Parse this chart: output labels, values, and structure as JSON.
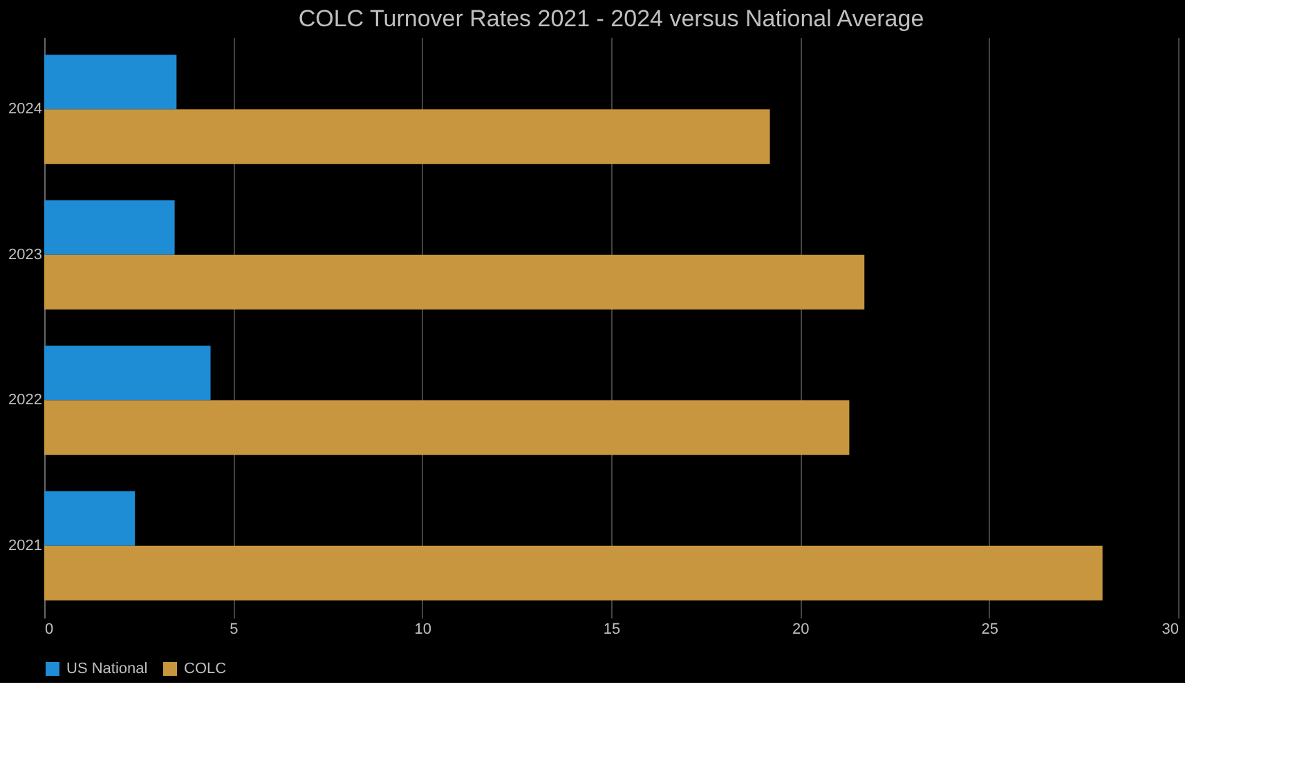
{
  "chart_data": {
    "type": "bar",
    "orientation": "horizontal",
    "title": "COLC Turnover Rates 2021 - 2024 versus National Average",
    "categories": [
      "2024",
      "2023",
      "2022",
      "2021"
    ],
    "series": [
      {
        "name": "US National",
        "color": "#1f8dd6",
        "values": [
          3.5,
          3.45,
          4.4,
          2.4
        ]
      },
      {
        "name": "COLC",
        "color": "#c8963e",
        "values": [
          19.2,
          21.7,
          21.3,
          28.0
        ]
      }
    ],
    "xlim": [
      0,
      30
    ],
    "xticks": [
      0,
      5,
      10,
      15,
      20,
      25,
      30
    ],
    "grid": "x",
    "legend": "bottom"
  }
}
